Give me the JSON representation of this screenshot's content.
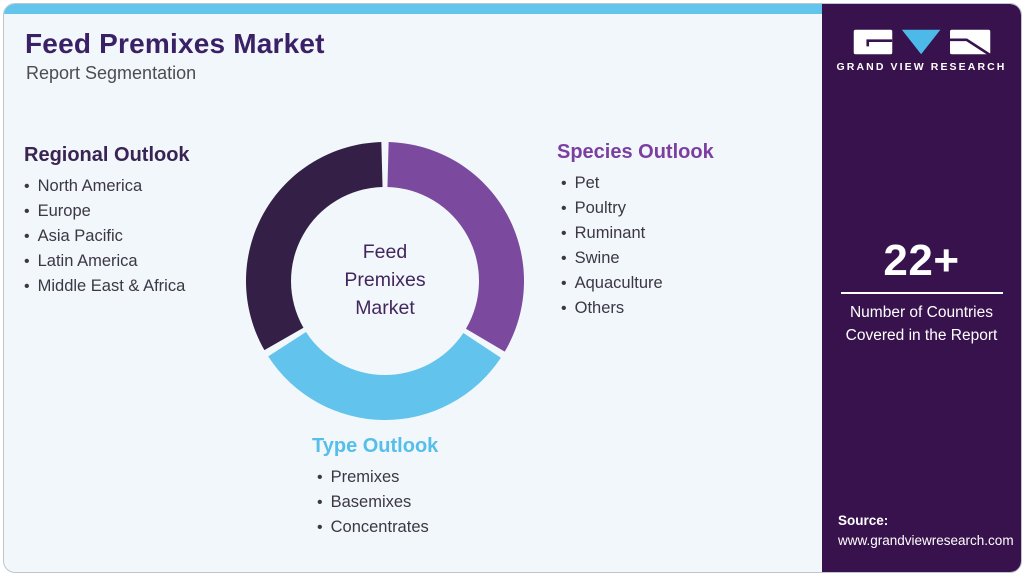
{
  "header": {
    "title": "Feed Premixes Market",
    "subtitle": "Report Segmentation"
  },
  "segments": {
    "regional": {
      "label": "Regional Outlook",
      "items": [
        "North America",
        "Europe",
        "Asia Pacific",
        "Latin America",
        "Middle East & Africa"
      ]
    },
    "species": {
      "label": "Species Outlook",
      "items": [
        "Pet",
        "Poultry",
        "Ruminant",
        "Swine",
        "Aquaculture",
        "Others"
      ]
    },
    "type": {
      "label": "Type Outlook",
      "items": [
        "Premixes",
        "Basemixes",
        "Concentrates"
      ]
    }
  },
  "chart_data": {
    "type": "pie",
    "subtype": "donut",
    "title": "Feed Premixes Market Report Segmentation",
    "center_label": "Feed\nPremixes\nMarket",
    "segments": [
      {
        "name": "Species Outlook",
        "value": 33.9,
        "color": "#7b4a9e"
      },
      {
        "name": "Type Outlook",
        "value": 32.4,
        "color": "#62c3ec"
      },
      {
        "name": "Regional Outlook",
        "value": 33.7,
        "color": "#342046"
      }
    ],
    "start_angle_deg": 0,
    "gap_deg": 3,
    "outer_radius": 139,
    "inner_radius": 94,
    "legend_position": "around-chart"
  },
  "sidebar": {
    "logo_text": "GRAND VIEW RESEARCH",
    "stat_value": "22+",
    "stat_label": "Number of Countries Covered in the Report",
    "source_label": "Source:",
    "source_url": "www.grandviewresearch.com"
  },
  "colors": {
    "topbar": "#63c4ec",
    "card_background": "#f1f7fa",
    "sidebar_background": "#38124d",
    "title": "#3a2166",
    "regional_header": "#3a2453",
    "species_header": "#7b3fa2",
    "type_header": "#55bfe9",
    "body_text": "#3c3744",
    "logo_accent_blue": "#4cb9e9"
  }
}
